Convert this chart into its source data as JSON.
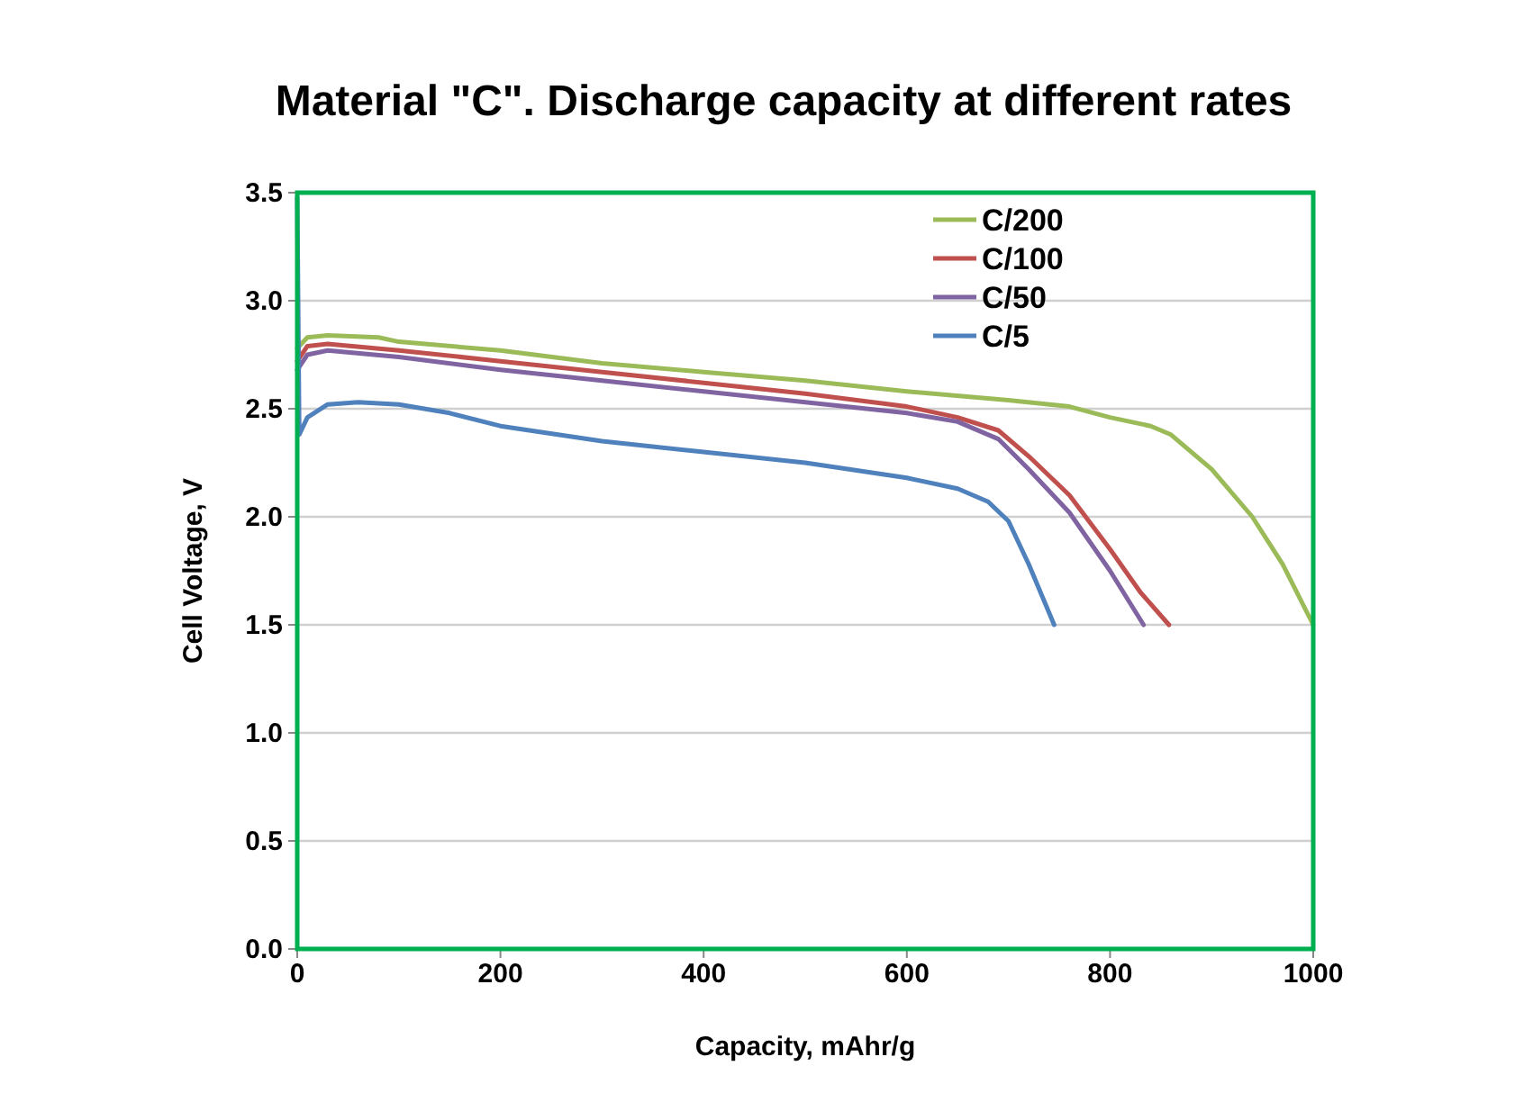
{
  "chart_data": {
    "type": "line",
    "title": "Material \"C\". Discharge capacity at different rates",
    "xlabel": "Capacity, mAhr/g",
    "ylabel": "Cell Voltage, V",
    "xlim": [
      0,
      1000
    ],
    "xticks": [
      0,
      200,
      400,
      600,
      800,
      1000
    ],
    "ylim": [
      0,
      3.5
    ],
    "yticks": [
      {
        "value": 0,
        "label": "0.0"
      },
      {
        "value": 0.5,
        "label": "0.5"
      },
      {
        "value": 1,
        "label": "1.0"
      },
      {
        "value": 1.5,
        "label": "1.5"
      },
      {
        "value": 2,
        "label": "2.0"
      },
      {
        "value": 2.5,
        "label": "2.5"
      },
      {
        "value": 3,
        "label": "3.0"
      },
      {
        "value": 3.5,
        "label": "3.5"
      }
    ],
    "grid": "y",
    "legend": "top right",
    "marker": "none",
    "line_style": "solid",
    "series": [
      {
        "name": "C/200",
        "color": "#9bbb59",
        "x": [
          0,
          10,
          30,
          80,
          100,
          200,
          300,
          400,
          500,
          600,
          700,
          760,
          800,
          840,
          860,
          900,
          940,
          970,
          1000
        ],
        "values": [
          2.78,
          2.83,
          2.84,
          2.83,
          2.81,
          2.77,
          2.71,
          2.67,
          2.63,
          2.58,
          2.54,
          2.51,
          2.46,
          2.42,
          2.38,
          2.22,
          2.0,
          1.78,
          1.5
        ]
      },
      {
        "name": "C/100",
        "color": "#c0504d",
        "x": [
          0,
          10,
          30,
          100,
          200,
          300,
          400,
          500,
          600,
          650,
          690,
          720,
          760,
          800,
          830,
          858
        ],
        "values": [
          2.72,
          2.79,
          2.8,
          2.77,
          2.72,
          2.67,
          2.62,
          2.57,
          2.51,
          2.46,
          2.4,
          2.28,
          2.1,
          1.85,
          1.65,
          1.5
        ]
      },
      {
        "name": "C/50",
        "color": "#8064a2",
        "x": [
          0,
          10,
          30,
          100,
          200,
          300,
          400,
          500,
          600,
          650,
          690,
          720,
          760,
          800,
          833
        ],
        "values": [
          2.68,
          2.75,
          2.77,
          2.74,
          2.68,
          2.63,
          2.58,
          2.53,
          2.48,
          2.44,
          2.36,
          2.22,
          2.02,
          1.75,
          1.5
        ]
      },
      {
        "name": "C/5",
        "color": "#4f81bd",
        "x": [
          0,
          2,
          10,
          30,
          60,
          100,
          150,
          200,
          300,
          400,
          500,
          600,
          650,
          680,
          700,
          720,
          745
        ],
        "values": [
          3.48,
          2.38,
          2.46,
          2.52,
          2.53,
          2.52,
          2.48,
          2.42,
          2.35,
          2.3,
          2.25,
          2.18,
          2.13,
          2.07,
          1.98,
          1.78,
          1.5
        ]
      }
    ]
  }
}
